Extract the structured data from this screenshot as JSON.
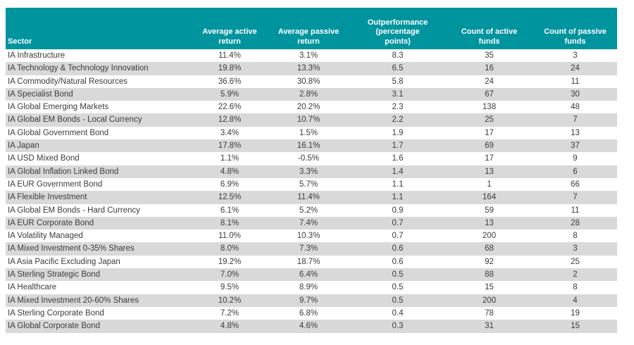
{
  "colors": {
    "header_bg": "#00949F",
    "row_stripe": "#D9D9D9",
    "body_text": "#3C3C3C",
    "header_text": "#FFFFFF"
  },
  "chart_data": {
    "type": "table",
    "columns": [
      "Sector",
      "Average active\nreturn",
      "Average passive\nreturn",
      "Outperformance\n(percentage\npoints)",
      "Count of active\nfunds",
      "Count of passive\nfunds"
    ],
    "rows": [
      [
        "IA Infrastructure",
        "11.4%",
        "3.1%",
        "8.3",
        "35",
        "3"
      ],
      [
        "IA Technology & Technology Innovation",
        "19.8%",
        "13.3%",
        "6.5",
        "16",
        "24"
      ],
      [
        "IA Commodity/Natural Resources",
        "36.6%",
        "30.8%",
        "5.8",
        "24",
        "11"
      ],
      [
        "IA Specialist Bond",
        "5.9%",
        "2.8%",
        "3.1",
        "67",
        "30"
      ],
      [
        "IA Global Emerging Markets",
        "22.6%",
        "20.2%",
        "2.3",
        "138",
        "48"
      ],
      [
        "IA Global EM Bonds - Local Currency",
        "12.8%",
        "10.7%",
        "2.2",
        "25",
        "7"
      ],
      [
        "IA Global Government Bond",
        "3.4%",
        "1.5%",
        "1.9",
        "17",
        "13"
      ],
      [
        "IA Japan",
        "17.8%",
        "16.1%",
        "1.7",
        "69",
        "37"
      ],
      [
        "IA USD Mixed Bond",
        "1.1%",
        "-0.5%",
        "1.6",
        "17",
        "9"
      ],
      [
        "IA Global Inflation Linked Bond",
        "4.8%",
        "3.3%",
        "1.4",
        "13",
        "6"
      ],
      [
        "IA EUR Government Bond",
        "6.9%",
        "5.7%",
        "1.1",
        "1",
        "66"
      ],
      [
        "IA Flexible Investment",
        "12.5%",
        "11.4%",
        "1.1",
        "164",
        "7"
      ],
      [
        "IA Global EM Bonds - Hard Currency",
        "6.1%",
        "5.2%",
        "0.9",
        "59",
        "11"
      ],
      [
        "IA EUR Corporate Bond",
        "8.1%",
        "7.4%",
        "0.7",
        "13",
        "28"
      ],
      [
        "IA Volatility Managed",
        "11.0%",
        "10.3%",
        "0.7",
        "200",
        "8"
      ],
      [
        "IA Mixed Investment 0-35% Shares",
        "8.0%",
        "7.3%",
        "0.6",
        "68",
        "3"
      ],
      [
        "IA Asia Pacific Excluding Japan",
        "19.2%",
        "18.7%",
        "0.6",
        "92",
        "25"
      ],
      [
        "IA Sterling Strategic Bond",
        "7.0%",
        "6.4%",
        "0.5",
        "88",
        "2"
      ],
      [
        "IA Healthcare",
        "9.5%",
        "8.9%",
        "0.5",
        "15",
        "8"
      ],
      [
        "IA Mixed Investment 20-60% Shares",
        "10.2%",
        "9.7%",
        "0.5",
        "200",
        "4"
      ],
      [
        "IA Sterling Corporate Bond",
        "7.2%",
        "6.8%",
        "0.4",
        "78",
        "19"
      ],
      [
        "IA Global Corporate Bond",
        "4.8%",
        "4.6%",
        "0.3",
        "31",
        "15"
      ]
    ]
  }
}
